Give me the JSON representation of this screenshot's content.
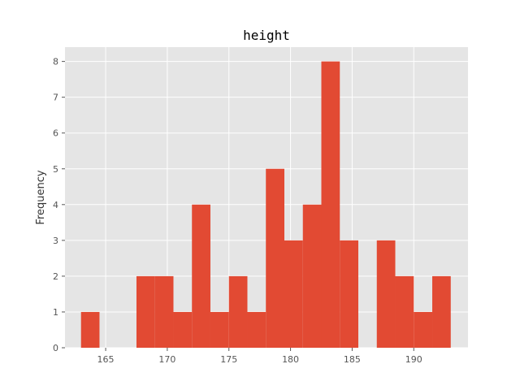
{
  "chart_data": {
    "type": "bar",
    "title": "height",
    "xlabel": "",
    "ylabel": "Frequency",
    "bin_start": 163.0,
    "bin_width": 1.5,
    "values": [
      1,
      0,
      0,
      2,
      2,
      1,
      4,
      1,
      2,
      1,
      5,
      3,
      4,
      8,
      3,
      0,
      3,
      2,
      1,
      2
    ],
    "xlim": [
      161.7,
      194.4
    ],
    "ylim": [
      0,
      8.4
    ],
    "xticks": [
      165,
      170,
      175,
      180,
      185,
      190
    ],
    "yticks": [
      0,
      1,
      2,
      3,
      4,
      5,
      6,
      7,
      8
    ],
    "grid": true,
    "legend": "none",
    "colors": {
      "bar": "#E24A33",
      "plot_background": "#E5E5E5",
      "grid": "#FFFFFF"
    }
  }
}
